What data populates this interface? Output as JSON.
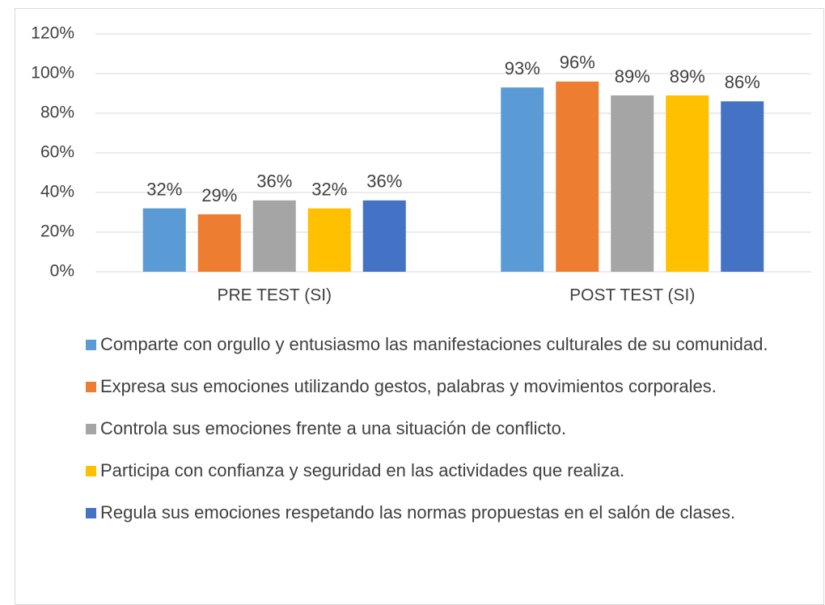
{
  "chart_data": {
    "type": "bar",
    "categories": [
      "PRE TEST (SI)",
      "POST TEST (SI)"
    ],
    "series": [
      {
        "name": "Comparte con orgullo y entusiasmo las manifestaciones culturales de su comunidad.",
        "color": "#5b9bd5",
        "values": [
          32,
          93
        ],
        "value_labels": [
          "32%",
          "93%"
        ]
      },
      {
        "name": "Expresa sus emociones utilizando gestos, palabras y movimientos corporales.",
        "color": "#ed7d31",
        "values": [
          29,
          96
        ],
        "value_labels": [
          "29%",
          "96%"
        ]
      },
      {
        "name": "Controla sus emociones frente a una situación de conflicto.",
        "color": "#a5a5a5",
        "values": [
          36,
          89
        ],
        "value_labels": [
          "36%",
          "89%"
        ]
      },
      {
        "name": "Participa con confianza y seguridad en las actividades que realiza.",
        "color": "#ffc000",
        "values": [
          32,
          89
        ],
        "value_labels": [
          "32%",
          "89%"
        ]
      },
      {
        "name": "Regula sus emociones respetando las normas propuestas en el salón de clases.",
        "color": "#4472c4",
        "values": [
          36,
          86
        ],
        "value_labels": [
          "36%",
          "86%"
        ]
      }
    ],
    "ylim": [
      0,
      120
    ],
    "yticks": [
      {
        "value": 0,
        "label": "0%"
      },
      {
        "value": 20,
        "label": "20%"
      },
      {
        "value": 40,
        "label": "40%"
      },
      {
        "value": 60,
        "label": "60%"
      },
      {
        "value": 80,
        "label": "80%"
      },
      {
        "value": 100,
        "label": "100%"
      },
      {
        "value": 120,
        "label": "120%"
      }
    ],
    "grid": true,
    "legend": "bottom"
  }
}
